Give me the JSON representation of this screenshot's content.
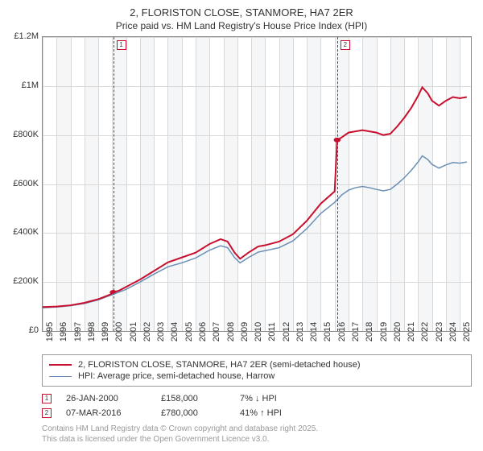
{
  "title": {
    "line1": "2, FLORISTON CLOSE, STANMORE, HA7 2ER",
    "line2": "Price paid vs. HM Land Registry's House Price Index (HPI)",
    "fontsize1": 13,
    "fontsize2": 12
  },
  "chart": {
    "type": "line",
    "background_color": "#ffffff",
    "band_color": "#f4f6f8",
    "grid_color": "#d8d8d8",
    "axis_color": "#888888",
    "x": {
      "min": 1995,
      "max": 2025.8,
      "ticks": [
        1995,
        1996,
        1997,
        1998,
        1999,
        2000,
        2001,
        2002,
        2003,
        2004,
        2005,
        2006,
        2007,
        2008,
        2009,
        2010,
        2011,
        2012,
        2013,
        2014,
        2015,
        2016,
        2017,
        2018,
        2019,
        2020,
        2021,
        2022,
        2023,
        2024,
        2025
      ],
      "label_fontsize": 11
    },
    "y": {
      "min": 0,
      "max": 1200000,
      "ticks": [
        0,
        200000,
        400000,
        600000,
        800000,
        1000000,
        1200000
      ],
      "tick_labels": [
        "£0",
        "£200K",
        "£400K",
        "£600K",
        "£800K",
        "£1M",
        "£1.2M"
      ],
      "label_fontsize": 11
    },
    "series": [
      {
        "id": "price_paid",
        "label": "2, FLORISTON CLOSE, STANMORE, HA7 2ER (semi-detached house)",
        "color": "#c8102e",
        "width": 2,
        "data": [
          [
            1995.0,
            98000
          ],
          [
            1996.0,
            100000
          ],
          [
            1997.0,
            105000
          ],
          [
            1998.0,
            115000
          ],
          [
            1999.0,
            130000
          ],
          [
            1999.9,
            150000
          ],
          [
            2000.07,
            158000
          ],
          [
            2000.5,
            165000
          ],
          [
            2001.0,
            180000
          ],
          [
            2002.0,
            210000
          ],
          [
            2003.0,
            245000
          ],
          [
            2004.0,
            280000
          ],
          [
            2005.0,
            300000
          ],
          [
            2006.0,
            320000
          ],
          [
            2007.0,
            355000
          ],
          [
            2007.8,
            375000
          ],
          [
            2008.3,
            365000
          ],
          [
            2008.8,
            320000
          ],
          [
            2009.2,
            295000
          ],
          [
            2009.8,
            320000
          ],
          [
            2010.5,
            345000
          ],
          [
            2011.0,
            350000
          ],
          [
            2012.0,
            365000
          ],
          [
            2013.0,
            395000
          ],
          [
            2014.0,
            450000
          ],
          [
            2015.0,
            520000
          ],
          [
            2016.0,
            570000
          ],
          [
            2016.18,
            780000
          ],
          [
            2016.5,
            790000
          ],
          [
            2017.0,
            810000
          ],
          [
            2017.5,
            815000
          ],
          [
            2018.0,
            820000
          ],
          [
            2018.5,
            815000
          ],
          [
            2019.0,
            810000
          ],
          [
            2019.5,
            800000
          ],
          [
            2020.0,
            805000
          ],
          [
            2020.5,
            835000
          ],
          [
            2021.0,
            870000
          ],
          [
            2021.5,
            910000
          ],
          [
            2022.0,
            960000
          ],
          [
            2022.3,
            995000
          ],
          [
            2022.7,
            970000
          ],
          [
            2023.0,
            940000
          ],
          [
            2023.5,
            920000
          ],
          [
            2024.0,
            940000
          ],
          [
            2024.5,
            955000
          ],
          [
            2025.0,
            950000
          ],
          [
            2025.5,
            955000
          ]
        ]
      },
      {
        "id": "hpi",
        "label": "HPI: Average price, semi-detached house, Harrow",
        "color": "#6b8fb5",
        "width": 1.5,
        "data": [
          [
            1995.0,
            95000
          ],
          [
            1996.0,
            98000
          ],
          [
            1997.0,
            103000
          ],
          [
            1998.0,
            112000
          ],
          [
            1999.0,
            127000
          ],
          [
            2000.0,
            148000
          ],
          [
            2001.0,
            170000
          ],
          [
            2002.0,
            200000
          ],
          [
            2003.0,
            232000
          ],
          [
            2004.0,
            262000
          ],
          [
            2005.0,
            278000
          ],
          [
            2006.0,
            298000
          ],
          [
            2007.0,
            330000
          ],
          [
            2007.8,
            348000
          ],
          [
            2008.3,
            340000
          ],
          [
            2008.8,
            300000
          ],
          [
            2009.2,
            278000
          ],
          [
            2009.8,
            300000
          ],
          [
            2010.5,
            322000
          ],
          [
            2011.0,
            328000
          ],
          [
            2012.0,
            340000
          ],
          [
            2013.0,
            368000
          ],
          [
            2014.0,
            418000
          ],
          [
            2015.0,
            480000
          ],
          [
            2016.0,
            525000
          ],
          [
            2016.5,
            555000
          ],
          [
            2017.0,
            575000
          ],
          [
            2017.5,
            585000
          ],
          [
            2018.0,
            590000
          ],
          [
            2018.5,
            585000
          ],
          [
            2019.0,
            578000
          ],
          [
            2019.5,
            572000
          ],
          [
            2020.0,
            578000
          ],
          [
            2020.5,
            600000
          ],
          [
            2021.0,
            625000
          ],
          [
            2021.5,
            655000
          ],
          [
            2022.0,
            690000
          ],
          [
            2022.3,
            715000
          ],
          [
            2022.7,
            700000
          ],
          [
            2023.0,
            680000
          ],
          [
            2023.5,
            665000
          ],
          [
            2024.0,
            678000
          ],
          [
            2024.5,
            688000
          ],
          [
            2025.0,
            685000
          ],
          [
            2025.5,
            690000
          ]
        ]
      }
    ],
    "sale_markers": [
      {
        "n": "1",
        "x": 2000.07,
        "y": 158000,
        "color": "#c8102e"
      },
      {
        "n": "2",
        "x": 2016.18,
        "y": 780000,
        "color": "#c8102e"
      }
    ]
  },
  "legend": {
    "border_color": "#999999",
    "items": [
      {
        "color": "#c8102e",
        "width": 2,
        "label": "2, FLORISTON CLOSE, STANMORE, HA7 2ER (semi-detached house)"
      },
      {
        "color": "#6b8fb5",
        "width": 1.5,
        "label": "HPI: Average price, semi-detached house, Harrow"
      }
    ]
  },
  "sales_table": {
    "rows": [
      {
        "n": "1",
        "color": "#c8102e",
        "date": "26-JAN-2000",
        "price": "£158,000",
        "pct": "7% ↓ HPI"
      },
      {
        "n": "2",
        "color": "#c8102e",
        "date": "07-MAR-2016",
        "price": "£780,000",
        "pct": "41% ↑ HPI"
      }
    ]
  },
  "footer": {
    "line1": "Contains HM Land Registry data © Crown copyright and database right 2025.",
    "line2": "This data is licensed under the Open Government Licence v3.0.",
    "color": "#999999",
    "fontsize": 10
  }
}
